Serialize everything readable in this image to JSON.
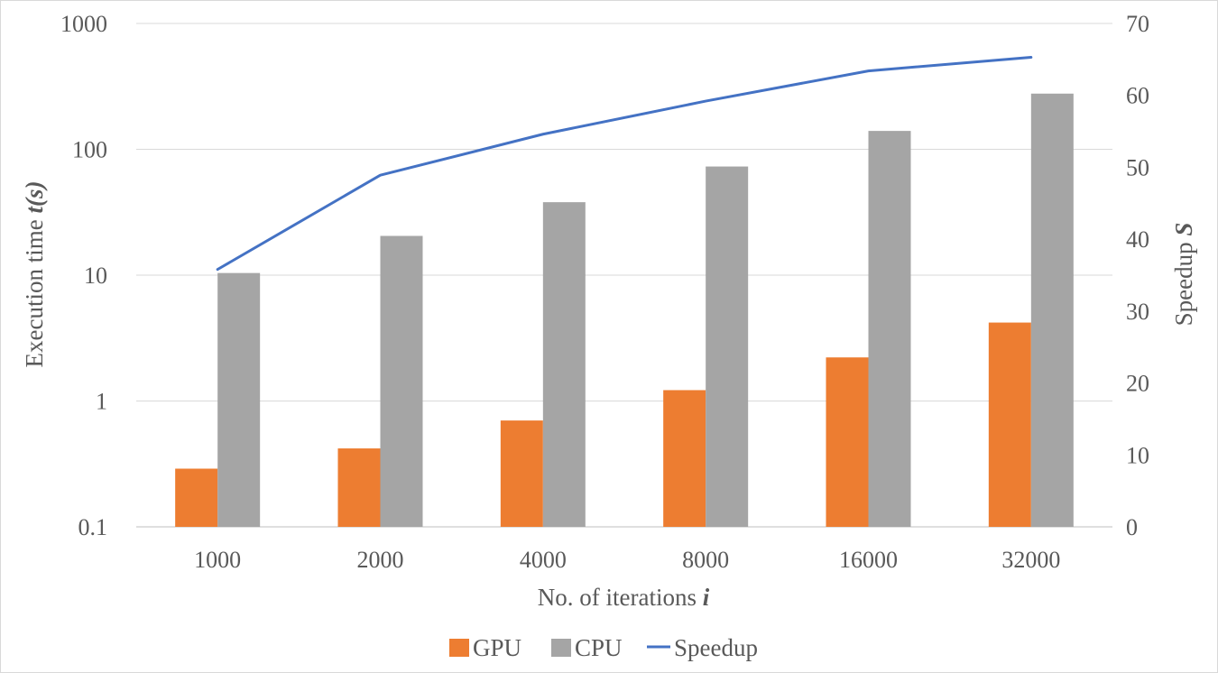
{
  "chart_data": {
    "type": "bar",
    "categories": [
      "1000",
      "2000",
      "4000",
      "8000",
      "16000",
      "32000"
    ],
    "series": [
      {
        "name": "GPU",
        "axis": "left",
        "kind": "bar",
        "color": "#ED7D31",
        "values": [
          0.29,
          0.42,
          0.7,
          1.22,
          2.22,
          4.2
        ]
      },
      {
        "name": "CPU",
        "axis": "left",
        "kind": "bar",
        "color": "#A5A5A5",
        "values": [
          10.4,
          20.5,
          38,
          73,
          140,
          277
        ]
      },
      {
        "name": "Speedup",
        "axis": "right",
        "kind": "line",
        "color": "#4472C4",
        "values": [
          35.8,
          48.9,
          54.6,
          59.2,
          63.4,
          65.3
        ]
      }
    ],
    "xlabel": {
      "text": "No. of iterations ",
      "italic": "i"
    },
    "ylabel_left": {
      "text": "Execution time ",
      "italic": "t(s)"
    },
    "ylabel_right": {
      "text": "Speedup ",
      "italic": "S"
    },
    "y_left": {
      "scale": "log",
      "lim": [
        0.1,
        1000
      ],
      "ticks": [
        0.1,
        1,
        10,
        100,
        1000
      ],
      "tick_labels": [
        "0.1",
        "1",
        "10",
        "100",
        "1000"
      ]
    },
    "y_right": {
      "scale": "linear",
      "lim": [
        0,
        70
      ],
      "ticks": [
        0,
        10,
        20,
        30,
        40,
        50,
        60,
        70
      ],
      "tick_labels": [
        "0",
        "10",
        "20",
        "30",
        "40",
        "50",
        "60",
        "70"
      ]
    },
    "grid": true,
    "legend_position": "bottom"
  }
}
